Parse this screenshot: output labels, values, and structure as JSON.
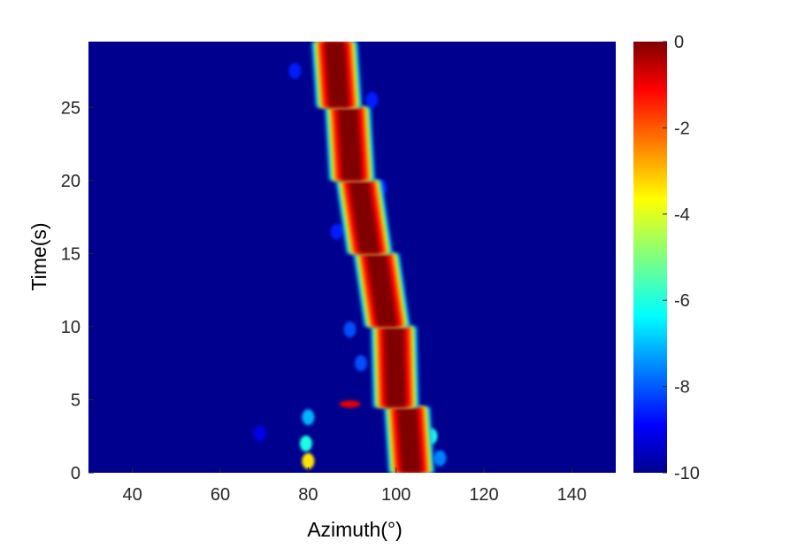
{
  "chart_data": {
    "type": "heatmap",
    "title": "",
    "xlabel": "Azimuth(°)",
    "ylabel": "Time(s)",
    "xlim": [
      30,
      150
    ],
    "ylim": [
      0,
      29.5
    ],
    "xticks": [
      40,
      60,
      80,
      100,
      120,
      140
    ],
    "yticks": [
      0,
      5,
      10,
      15,
      20,
      25
    ],
    "colormap": "jet",
    "background_value": -10,
    "grid": false,
    "colorbar": {
      "range": [
        -10,
        0
      ],
      "ticks": [
        0,
        -2,
        -4,
        -6,
        -8,
        -10
      ],
      "placement": "right"
    },
    "track": {
      "description_value": 0,
      "segments": [
        {
          "t_start": 0.0,
          "t_end": 4.5,
          "azimuth_start": 103.5,
          "azimuth_end": 102.5
        },
        {
          "t_start": 4.5,
          "t_end": 10.0,
          "azimuth_start": 100.0,
          "azimuth_end": 99.5
        },
        {
          "t_start": 10.0,
          "t_end": 15.0,
          "azimuth_start": 98.0,
          "azimuth_end": 95.5
        },
        {
          "t_start": 15.0,
          "t_end": 20.0,
          "azimuth_start": 94.0,
          "azimuth_end": 91.5
        },
        {
          "t_start": 20.0,
          "t_end": 25.0,
          "azimuth_start": 90.0,
          "azimuth_end": 89.0
        },
        {
          "t_start": 25.0,
          "t_end": 29.5,
          "azimuth_start": 87.0,
          "azimuth_end": 86.0
        }
      ]
    },
    "sidelobes": [
      {
        "azimuth": 80.0,
        "time": 0.8,
        "value": -3.5
      },
      {
        "azimuth": 79.5,
        "time": 2.0,
        "value": -6.0
      },
      {
        "azimuth": 80.0,
        "time": 3.8,
        "value": -7.0
      },
      {
        "azimuth": 89.5,
        "time": 4.7,
        "value": -1.0
      },
      {
        "azimuth": 108.0,
        "time": 2.5,
        "value": -6.0
      },
      {
        "azimuth": 110.0,
        "time": 1.0,
        "value": -7.5
      },
      {
        "azimuth": 92.0,
        "time": 7.5,
        "value": -8.0
      },
      {
        "azimuth": 89.5,
        "time": 9.8,
        "value": -8.0
      },
      {
        "azimuth": 86.5,
        "time": 16.5,
        "value": -8.5
      },
      {
        "azimuth": 96.5,
        "time": 19.5,
        "value": -8.5
      },
      {
        "azimuth": 94.5,
        "time": 25.5,
        "value": -8.5
      },
      {
        "azimuth": 77.0,
        "time": 27.5,
        "value": -8.5
      },
      {
        "azimuth": 69.0,
        "time": 2.7,
        "value": -9.0
      }
    ]
  }
}
